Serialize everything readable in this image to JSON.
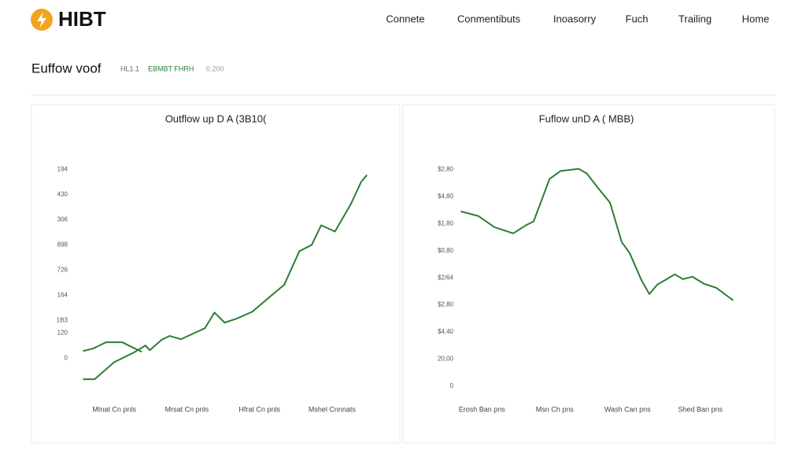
{
  "header": {
    "logo": "HIBT",
    "nav": [
      "Connete",
      "Conmentibuts",
      "Inoasorry",
      "Fuch",
      "Trailing",
      "Home"
    ]
  },
  "section": {
    "title": "Euffow voof",
    "meta": [
      "HL1.1",
      "EBMBT FHRH",
      "0.200"
    ]
  },
  "chart_data": [
    {
      "type": "line",
      "title": "Outflow up D A (3B10(",
      "xlim": [
        0,
        4
      ],
      "xticks": [
        {
          "value": 0.5,
          "label": "Mtnat Cn pnls"
        },
        {
          "value": 1.5,
          "label": "Mrsat Cn pnls"
        },
        {
          "value": 2.5,
          "label": "Hfrat Cn pnls"
        },
        {
          "value": 3.5,
          "label": "Mshel Cnnnats"
        }
      ],
      "ylim": [
        -0.9,
        7.7
      ],
      "yticks": [
        0,
        {
          "value": 1,
          "label": "120"
        },
        {
          "value": 1.5,
          "label": "1B3"
        },
        {
          "value": 2.5,
          "label": "164"
        },
        {
          "value": 3.5,
          "label": "726"
        },
        {
          "value": 4.5,
          "label": "898"
        },
        {
          "value": 5.5,
          "label": "306"
        },
        {
          "value": 6.5,
          "label": "430"
        },
        {
          "value": 7.5,
          "label": "194"
        }
      ],
      "grid": false,
      "series": [
        {
          "color": "#2e7d32",
          "x": [
            0.07,
            0.21,
            0.39,
            0.61,
            0.72,
            0.88
          ],
          "values": [
            0.28,
            0.38,
            0.63,
            0.63,
            0.47,
            0.25
          ]
        },
        {
          "color": "#2e7d32",
          "x": [
            0.07,
            0.23,
            0.5,
            0.77,
            0.93,
            0.99,
            1.15,
            1.26,
            1.42,
            1.75,
            1.88,
            2.02,
            2.18,
            2.4,
            2.67,
            2.84,
            3.05,
            3.22,
            3.35,
            3.54,
            3.76,
            3.9,
            3.98
          ],
          "values": [
            -0.84,
            -0.84,
            -0.16,
            0.22,
            0.5,
            0.31,
            0.72,
            0.88,
            0.75,
            1.19,
            1.81,
            1.41,
            1.56,
            1.84,
            2.5,
            2.91,
            4.25,
            4.5,
            5.28,
            5.03,
            6.13,
            7.0,
            7.28
          ]
        }
      ]
    },
    {
      "type": "line",
      "title": "Fuflow unD A ( MBB)",
      "xlim": [
        0,
        4
      ],
      "xticks": [
        {
          "value": 0.5,
          "label": "Erosh Ban pns"
        },
        {
          "value": 1.5,
          "label": "Msn Ch pns"
        },
        {
          "value": 2.5,
          "label": "Wash Can pns"
        },
        {
          "value": 3.5,
          "label": "Shed Ban pns"
        }
      ],
      "ylim": [
        0,
        8.3
      ],
      "yticks": [
        0,
        {
          "value": 1,
          "label": "20,00"
        },
        {
          "value": 2,
          "label": "$4,40"
        },
        {
          "value": 3,
          "label": "$2,80"
        },
        {
          "value": 4,
          "label": "$2/64"
        },
        {
          "value": 5,
          "label": "$0,80"
        },
        {
          "value": 6,
          "label": "$1,80"
        },
        {
          "value": 7,
          "label": "$4,80"
        },
        {
          "value": 8,
          "label": "$2,80"
        }
      ],
      "grid": false,
      "series": [
        {
          "color": "#2e7d32",
          "x": [
            0.21,
            0.45,
            0.67,
            0.93,
            1.1,
            1.21,
            1.43,
            1.58,
            1.83,
            1.94,
            2.1,
            2.26,
            2.42,
            2.53,
            2.69,
            2.8,
            2.91,
            3.02,
            3.15,
            3.26,
            3.39,
            3.55,
            3.72,
            3.95
          ],
          "values": [
            6.45,
            6.28,
            5.87,
            5.64,
            5.93,
            6.08,
            7.65,
            7.94,
            8.02,
            7.85,
            7.3,
            6.77,
            5.32,
            4.91,
            3.92,
            3.4,
            3.75,
            3.92,
            4.13,
            3.95,
            4.04,
            3.78,
            3.63,
            3.17
          ]
        }
      ]
    }
  ]
}
